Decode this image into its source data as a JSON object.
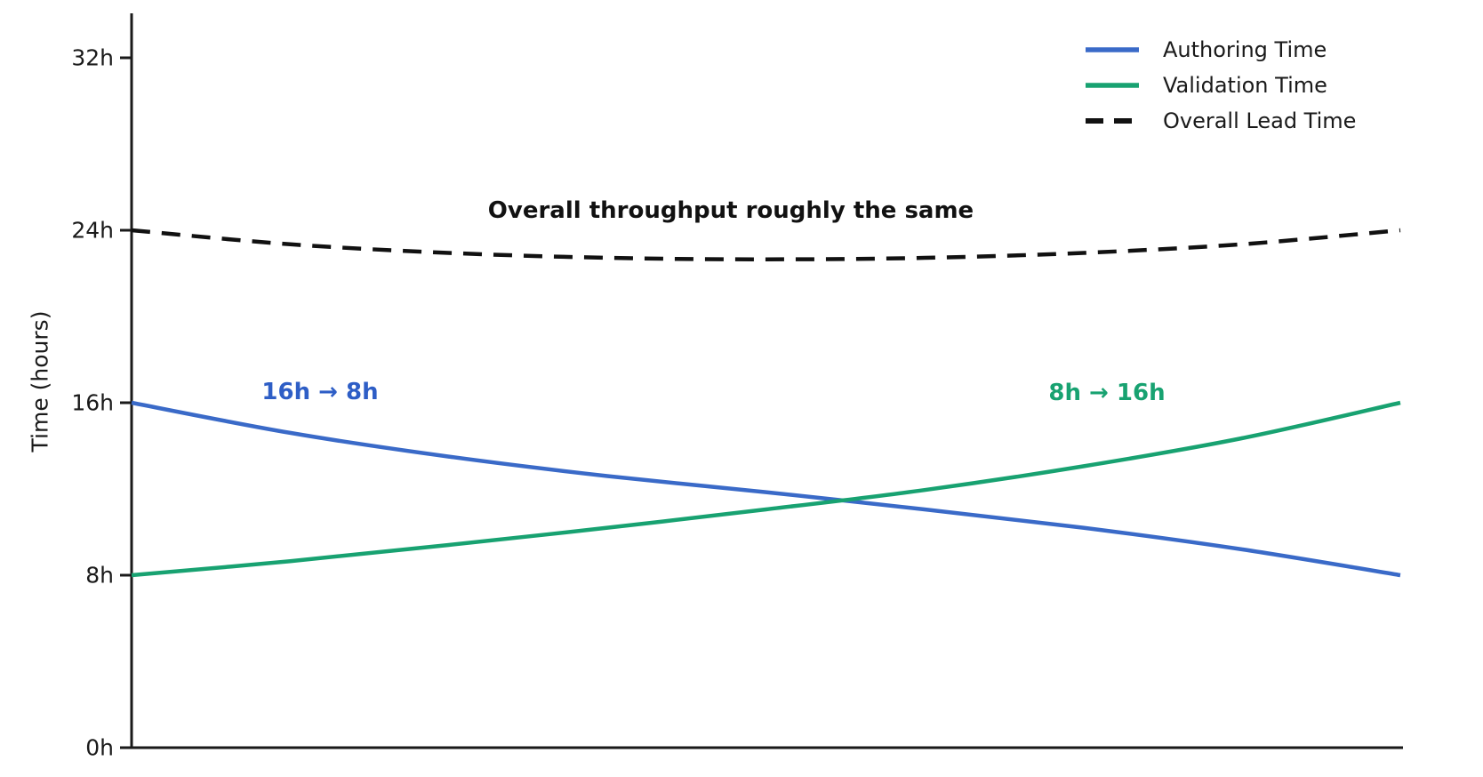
{
  "chart_data": {
    "type": "line",
    "ylabel": "Time (hours)",
    "ylim": [
      0,
      34
    ],
    "grid": false,
    "legend_position": "top-right",
    "yticks": [
      {
        "value": 0,
        "label": "0h"
      },
      {
        "value": 8,
        "label": "8h"
      },
      {
        "value": 16,
        "label": "16h"
      },
      {
        "value": 24,
        "label": "24h"
      },
      {
        "value": 32,
        "label": "32h"
      }
    ],
    "x_normalized": [
      0,
      0.125,
      0.25,
      0.375,
      0.5,
      0.625,
      0.75,
      0.875,
      1
    ],
    "series": [
      {
        "name": "Authoring Time",
        "style": "solid",
        "color": "#3a6ac8",
        "start_value": 16,
        "end_value": 8,
        "values": [
          16,
          14.6,
          13.5,
          12.6,
          11.85,
          11.05,
          10.2,
          9.2,
          8
        ]
      },
      {
        "name": "Validation Time",
        "style": "solid",
        "color": "#18a271",
        "start_value": 8,
        "end_value": 16,
        "values": [
          8,
          8.65,
          9.4,
          10.2,
          11.05,
          11.95,
          13.05,
          14.35,
          16
        ]
      },
      {
        "name": "Overall Lead Time",
        "style": "dashed",
        "color": "#111111",
        "start_value": 24,
        "end_value": 24,
        "values": [
          24,
          23.35,
          22.95,
          22.72,
          22.65,
          22.72,
          22.95,
          23.35,
          24
        ]
      }
    ],
    "annotations": [
      {
        "id": "authoring-change",
        "text": "16h → 8h",
        "color": "#2e5ec6"
      },
      {
        "id": "validation-change",
        "text": "8h → 16h",
        "color": "#18a271"
      },
      {
        "id": "throughput-note",
        "text": "Overall throughput roughly the same",
        "color": "#111111"
      }
    ],
    "axis_color": "#1a1a1a"
  }
}
